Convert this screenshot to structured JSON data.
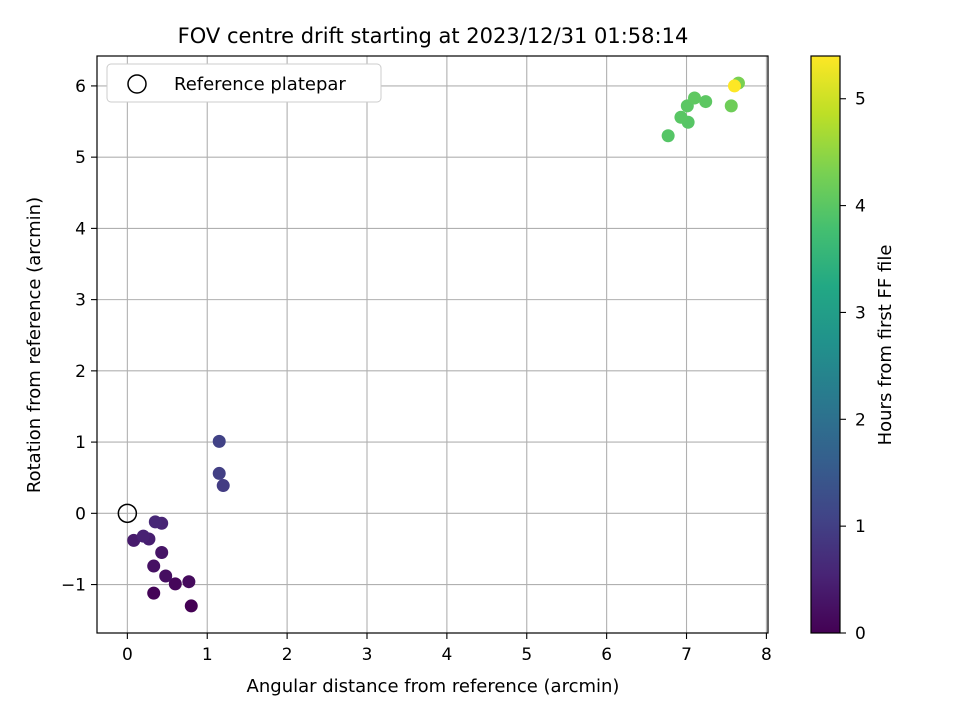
{
  "chart_data": {
    "type": "scatter",
    "title": "FOV centre drift starting at 2023/12/31 01:58:14",
    "xlabel": "Angular distance from reference (arcmin)",
    "ylabel": "Rotation from reference (arcmin)",
    "xlim": [
      -0.38,
      8.02
    ],
    "ylim": [
      -1.68,
      6.42
    ],
    "xticks": [
      0,
      1,
      2,
      3,
      4,
      5,
      6,
      7,
      8
    ],
    "yticks": [
      -1,
      0,
      1,
      2,
      3,
      4,
      5,
      6
    ],
    "grid": true,
    "legend": {
      "position": "top-left",
      "entries": [
        {
          "label": "Reference platepar",
          "marker": "open-circle",
          "x": 0,
          "y": 0
        }
      ]
    },
    "colorbar": {
      "label": "Hours from first FF file",
      "colormap": "viridis",
      "range": [
        0,
        5.4
      ],
      "ticks": [
        0,
        1,
        2,
        3,
        4,
        5
      ]
    },
    "points": [
      {
        "x": 0.8,
        "y": -1.3,
        "c": 0.0
      },
      {
        "x": 0.33,
        "y": -1.12,
        "c": 0.05
      },
      {
        "x": 0.6,
        "y": -0.99,
        "c": 0.1
      },
      {
        "x": 0.77,
        "y": -0.96,
        "c": 0.15
      },
      {
        "x": 0.48,
        "y": -0.88,
        "c": 0.2
      },
      {
        "x": 0.33,
        "y": -0.74,
        "c": 0.25
      },
      {
        "x": 0.43,
        "y": -0.55,
        "c": 0.3
      },
      {
        "x": 0.08,
        "y": -0.38,
        "c": 0.4
      },
      {
        "x": 0.27,
        "y": -0.36,
        "c": 0.45
      },
      {
        "x": 0.2,
        "y": -0.32,
        "c": 0.5
      },
      {
        "x": 0.43,
        "y": -0.14,
        "c": 0.55
      },
      {
        "x": 0.35,
        "y": -0.12,
        "c": 0.6
      },
      {
        "x": 1.2,
        "y": 0.39,
        "c": 0.95
      },
      {
        "x": 1.15,
        "y": 0.56,
        "c": 1.0
      },
      {
        "x": 1.15,
        "y": 1.01,
        "c": 1.05
      },
      {
        "x": 6.77,
        "y": 5.3,
        "c": 3.95
      },
      {
        "x": 7.02,
        "y": 5.49,
        "c": 3.97
      },
      {
        "x": 6.93,
        "y": 5.56,
        "c": 3.99
      },
      {
        "x": 7.01,
        "y": 5.72,
        "c": 4.01
      },
      {
        "x": 7.24,
        "y": 5.78,
        "c": 4.03
      },
      {
        "x": 7.1,
        "y": 5.83,
        "c": 4.05
      },
      {
        "x": 7.56,
        "y": 5.72,
        "c": 4.2
      },
      {
        "x": 7.65,
        "y": 6.04,
        "c": 4.3
      },
      {
        "x": 7.6,
        "y": 6.0,
        "c": 5.4
      }
    ]
  }
}
